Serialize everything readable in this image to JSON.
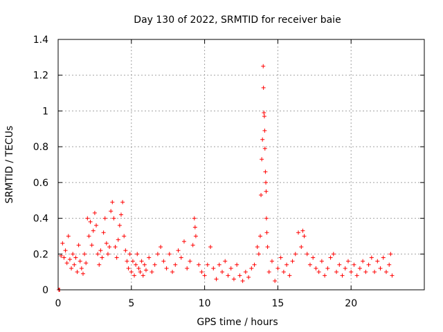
{
  "chart_data": {
    "type": "scatter",
    "title": "Day 130 of 2022, SRMTID for receiver baie",
    "xlabel": "GPS time / hours",
    "ylabel": "SRMTID / TECUs",
    "xlim": [
      0,
      25
    ],
    "ylim": [
      0,
      1.4
    ],
    "xticks": [
      0,
      5,
      10,
      15,
      20
    ],
    "yticks": [
      0,
      0.2,
      0.4,
      0.6,
      0.8,
      1.0,
      1.2,
      1.4
    ],
    "xtick_labels": [
      "0",
      "5",
      "10",
      "15",
      "20"
    ],
    "ytick_labels": [
      "0",
      "0.2",
      "0.4",
      "0.6",
      "0.8",
      "1",
      "1.2",
      "1.4"
    ],
    "grid": true,
    "marker": "+",
    "series": [
      {
        "name": "SRMTID",
        "color": "#ff0000",
        "points": [
          [
            0.05,
            0.0
          ],
          [
            0.1,
            0.0
          ],
          [
            0.2,
            0.19
          ],
          [
            0.3,
            0.26
          ],
          [
            0.4,
            0.18
          ],
          [
            0.5,
            0.22
          ],
          [
            0.6,
            0.15
          ],
          [
            0.7,
            0.3
          ],
          [
            0.8,
            0.17
          ],
          [
            0.9,
            0.12
          ],
          [
            1.0,
            0.2
          ],
          [
            1.1,
            0.14
          ],
          [
            1.2,
            0.18
          ],
          [
            1.3,
            0.1
          ],
          [
            1.4,
            0.25
          ],
          [
            1.5,
            0.16
          ],
          [
            1.6,
            0.12
          ],
          [
            1.7,
            0.09
          ],
          [
            1.8,
            0.2
          ],
          [
            1.9,
            0.15
          ],
          [
            2.0,
            0.4
          ],
          [
            2.1,
            0.3
          ],
          [
            2.2,
            0.38
          ],
          [
            2.3,
            0.25
          ],
          [
            2.4,
            0.33
          ],
          [
            2.5,
            0.43
          ],
          [
            2.6,
            0.36
          ],
          [
            2.7,
            0.2
          ],
          [
            2.8,
            0.14
          ],
          [
            2.9,
            0.22
          ],
          [
            3.0,
            0.18
          ],
          [
            3.1,
            0.32
          ],
          [
            3.2,
            0.4
          ],
          [
            3.3,
            0.26
          ],
          [
            3.4,
            0.2
          ],
          [
            3.5,
            0.24
          ],
          [
            3.6,
            0.44
          ],
          [
            3.7,
            0.49
          ],
          [
            3.8,
            0.4
          ],
          [
            3.9,
            0.24
          ],
          [
            4.0,
            0.18
          ],
          [
            4.1,
            0.28
          ],
          [
            4.2,
            0.36
          ],
          [
            4.3,
            0.42
          ],
          [
            4.4,
            0.49
          ],
          [
            4.5,
            0.3
          ],
          [
            4.6,
            0.22
          ],
          [
            4.7,
            0.16
          ],
          [
            4.8,
            0.12
          ],
          [
            4.9,
            0.2
          ],
          [
            5.0,
            0.1
          ],
          [
            5.1,
            0.16
          ],
          [
            5.2,
            0.08
          ],
          [
            5.3,
            0.14
          ],
          [
            5.4,
            0.2
          ],
          [
            5.5,
            0.12
          ],
          [
            5.6,
            0.1
          ],
          [
            5.7,
            0.16
          ],
          [
            5.8,
            0.08
          ],
          [
            5.9,
            0.14
          ],
          [
            6.0,
            0.11
          ],
          [
            6.2,
            0.18
          ],
          [
            6.4,
            0.1
          ],
          [
            6.6,
            0.14
          ],
          [
            6.8,
            0.2
          ],
          [
            7.0,
            0.24
          ],
          [
            7.2,
            0.16
          ],
          [
            7.4,
            0.12
          ],
          [
            7.6,
            0.2
          ],
          [
            7.8,
            0.1
          ],
          [
            8.0,
            0.14
          ],
          [
            8.2,
            0.22
          ],
          [
            8.4,
            0.18
          ],
          [
            8.6,
            0.27
          ],
          [
            8.8,
            0.12
          ],
          [
            9.0,
            0.16
          ],
          [
            9.2,
            0.25
          ],
          [
            9.3,
            0.4
          ],
          [
            9.35,
            0.35
          ],
          [
            9.4,
            0.3
          ],
          [
            9.6,
            0.14
          ],
          [
            9.8,
            0.1
          ],
          [
            10.0,
            0.08
          ],
          [
            10.2,
            0.14
          ],
          [
            10.4,
            0.24
          ],
          [
            10.6,
            0.12
          ],
          [
            10.8,
            0.06
          ],
          [
            11.0,
            0.14
          ],
          [
            11.2,
            0.1
          ],
          [
            11.4,
            0.16
          ],
          [
            11.6,
            0.08
          ],
          [
            11.8,
            0.12
          ],
          [
            12.0,
            0.06
          ],
          [
            12.2,
            0.14
          ],
          [
            12.4,
            0.08
          ],
          [
            12.6,
            0.05
          ],
          [
            12.8,
            0.1
          ],
          [
            13.0,
            0.07
          ],
          [
            13.2,
            0.12
          ],
          [
            13.4,
            0.14
          ],
          [
            13.6,
            0.24
          ],
          [
            13.7,
            0.2
          ],
          [
            13.8,
            0.3
          ],
          [
            13.85,
            0.53
          ],
          [
            13.9,
            0.73
          ],
          [
            13.95,
            0.84
          ],
          [
            14.0,
            1.25
          ],
          [
            14.02,
            1.13
          ],
          [
            14.05,
            0.99
          ],
          [
            14.08,
            0.97
          ],
          [
            14.1,
            0.89
          ],
          [
            14.12,
            0.79
          ],
          [
            14.15,
            0.66
          ],
          [
            14.18,
            0.6
          ],
          [
            14.2,
            0.55
          ],
          [
            14.22,
            0.4
          ],
          [
            14.25,
            0.32
          ],
          [
            14.3,
            0.24
          ],
          [
            14.4,
            0.1
          ],
          [
            14.6,
            0.16
          ],
          [
            14.8,
            0.05
          ],
          [
            15.0,
            0.12
          ],
          [
            15.2,
            0.18
          ],
          [
            15.4,
            0.1
          ],
          [
            15.6,
            0.14
          ],
          [
            15.8,
            0.08
          ],
          [
            16.0,
            0.16
          ],
          [
            16.2,
            0.2
          ],
          [
            16.4,
            0.32
          ],
          [
            16.6,
            0.24
          ],
          [
            16.7,
            0.33
          ],
          [
            16.8,
            0.3
          ],
          [
            17.0,
            0.2
          ],
          [
            17.2,
            0.14
          ],
          [
            17.4,
            0.18
          ],
          [
            17.6,
            0.12
          ],
          [
            17.8,
            0.1
          ],
          [
            18.0,
            0.16
          ],
          [
            18.2,
            0.08
          ],
          [
            18.4,
            0.12
          ],
          [
            18.6,
            0.18
          ],
          [
            18.8,
            0.2
          ],
          [
            19.0,
            0.1
          ],
          [
            19.2,
            0.14
          ],
          [
            19.4,
            0.08
          ],
          [
            19.6,
            0.12
          ],
          [
            19.8,
            0.16
          ],
          [
            20.0,
            0.1
          ],
          [
            20.2,
            0.14
          ],
          [
            20.4,
            0.08
          ],
          [
            20.6,
            0.12
          ],
          [
            20.8,
            0.16
          ],
          [
            21.0,
            0.1
          ],
          [
            21.2,
            0.14
          ],
          [
            21.4,
            0.18
          ],
          [
            21.6,
            0.1
          ],
          [
            21.8,
            0.16
          ],
          [
            22.0,
            0.12
          ],
          [
            22.2,
            0.18
          ],
          [
            22.4,
            0.1
          ],
          [
            22.6,
            0.14
          ],
          [
            22.7,
            0.2
          ],
          [
            22.8,
            0.08
          ]
        ]
      }
    ]
  }
}
